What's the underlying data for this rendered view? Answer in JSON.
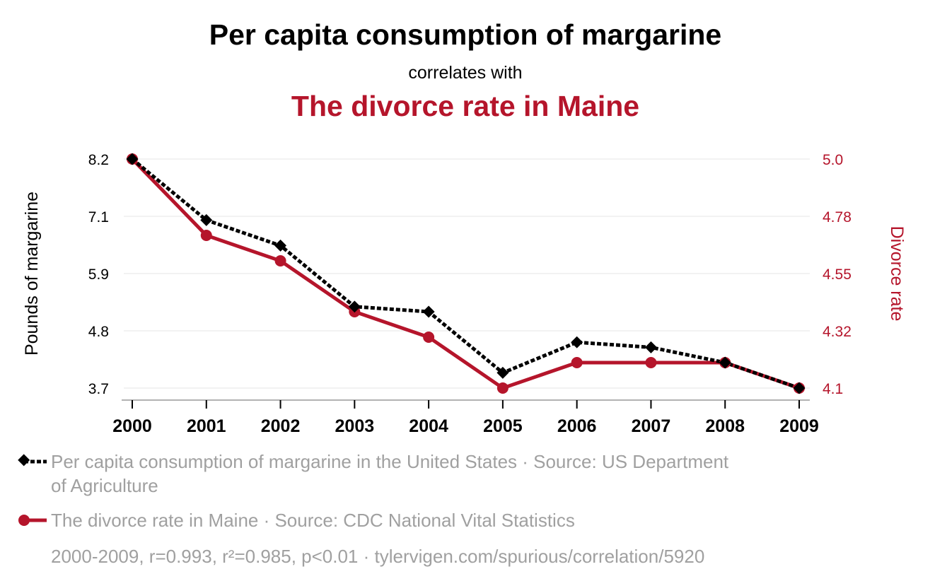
{
  "title": "Per capita consumption of margarine",
  "connector": "correlates with",
  "subtitle": "The divorce rate in Maine",
  "colors": {
    "series1": "#000000",
    "series2": "#b5152b",
    "legend_text": "#a0a0a0",
    "grid": "#eeeeee"
  },
  "chart_data": {
    "type": "line",
    "x": [
      2000,
      2001,
      2002,
      2003,
      2004,
      2005,
      2006,
      2007,
      2008,
      2009
    ],
    "x_tick_labels": [
      "2000",
      "2001",
      "2002",
      "2003",
      "2004",
      "2005",
      "2006",
      "2007",
      "2008",
      "2009"
    ],
    "ylabel_left": "Pounds of margarine",
    "ylabel_right": "Divorce rate",
    "ylim_left": [
      3.7,
      8.2
    ],
    "ylim_right": [
      4.1,
      5.0
    ],
    "left_tick_labels": [
      "8.2",
      "7.1",
      "5.9",
      "4.8",
      "3.7"
    ],
    "right_tick_labels": [
      "5.0",
      "4.78",
      "4.55",
      "4.32",
      "4.1"
    ],
    "grid": true,
    "legend_position": "bottom",
    "series": [
      {
        "name": "Per capita consumption of margarine in the United States · Source: US Department of Agriculture",
        "axis": "left",
        "marker": "diamond",
        "line": "dashed",
        "values": [
          8.2,
          7.0,
          6.5,
          5.3,
          5.2,
          4.0,
          4.6,
          4.5,
          4.2,
          3.7
        ]
      },
      {
        "name": "The divorce rate in Maine · Source: CDC National Vital Statistics",
        "axis": "right",
        "marker": "circle",
        "line": "solid",
        "values": [
          5.0,
          4.7,
          4.6,
          4.4,
          4.3,
          4.1,
          4.2,
          4.2,
          4.2,
          4.1
        ]
      }
    ]
  },
  "footer": "2000-2009, r=0.993, r²=0.985, p<0.01 · tylervigen.com/spurious/correlation/5920"
}
